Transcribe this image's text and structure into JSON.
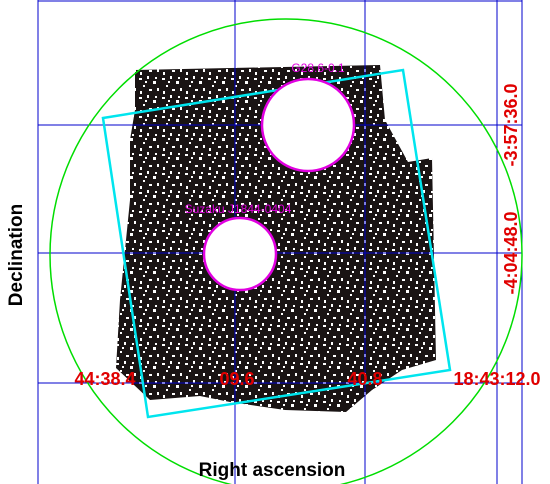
{
  "axes": {
    "x_label": "Right ascension",
    "y_label": "Declination"
  },
  "x_tick_labels": [
    "44:38.4",
    "09.6",
    "40.8",
    "18:43:12.0"
  ],
  "y_tick_labels": [
    "-3:57:36.0",
    "-4:04:48.0"
  ],
  "regions": [
    {
      "label": "G28.6-0.1"
    },
    {
      "label": "Suzaku J1844-0404"
    }
  ]
}
